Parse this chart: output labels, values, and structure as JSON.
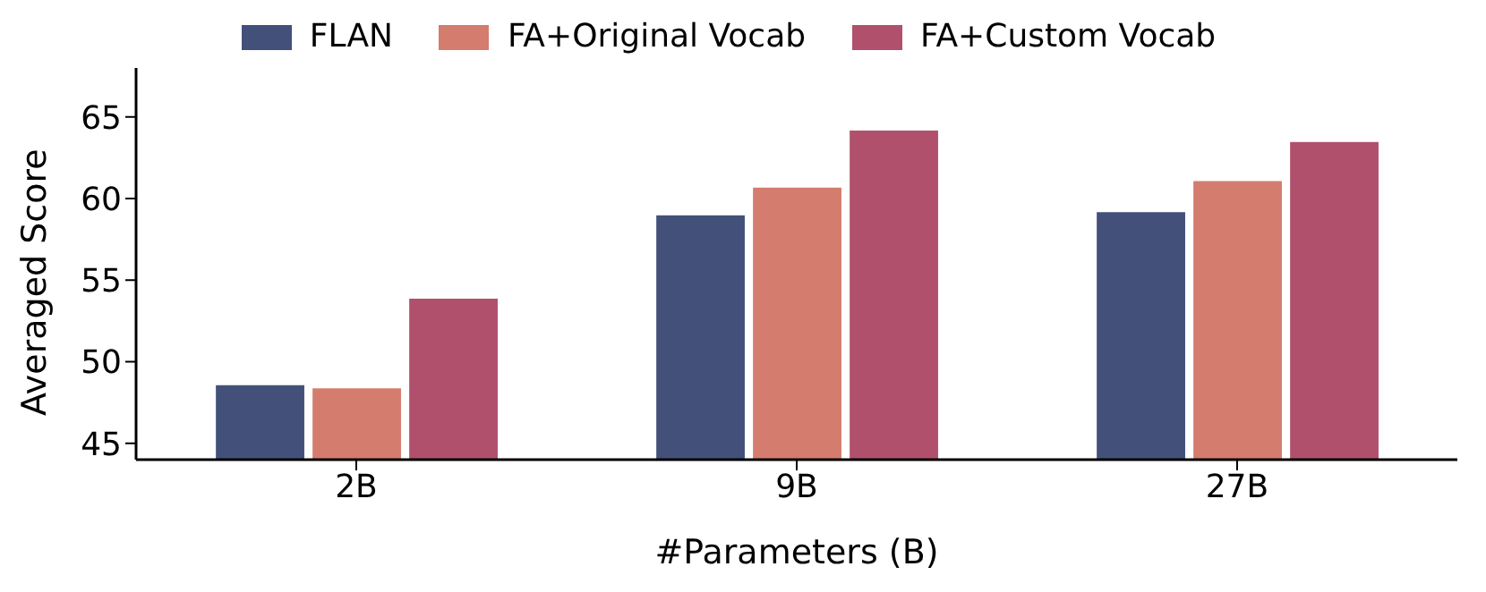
{
  "chart_data": {
    "type": "bar",
    "xlabel": "#Parameters (B)",
    "ylabel": "Averaged Score",
    "categories": [
      "2B",
      "9B",
      "27B"
    ],
    "series": [
      {
        "name": "FLAN",
        "color": "#43507a",
        "values": [
          48.6,
          59.0,
          59.2
        ]
      },
      {
        "name": "FA+Original Vocab",
        "color": "#d47c6e",
        "values": [
          48.4,
          60.7,
          61.1
        ]
      },
      {
        "name": "FA+Custom Vocab",
        "color": "#b0506c",
        "values": [
          53.9,
          64.2,
          63.5
        ]
      }
    ],
    "ylim": [
      44,
      68
    ],
    "yticks": [
      45,
      50,
      55,
      60,
      65
    ],
    "grid": false,
    "legend": "top"
  }
}
